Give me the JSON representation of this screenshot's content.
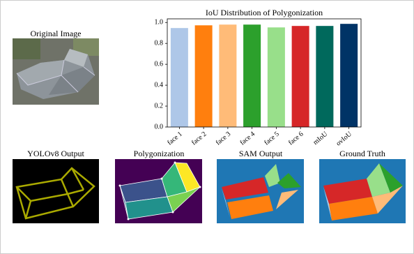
{
  "chart_data": {
    "type": "bar",
    "title": "IoU Distribution of Polygonization",
    "categories": [
      "face 1",
      "face 2",
      "face 3",
      "face 4",
      "face 5",
      "face 6",
      "mIoU",
      "ovIoU"
    ],
    "values": [
      0.947,
      0.973,
      0.98,
      0.98,
      0.953,
      0.967,
      0.967,
      0.987
    ],
    "colors": [
      "#aec7e8",
      "#ff7f0e",
      "#ffbb78",
      "#2ca02c",
      "#98df8a",
      "#d62728",
      "#00695c",
      "#003366"
    ],
    "ylim": [
      0,
      1.035
    ],
    "yticks": [
      {
        "value": 0,
        "label": "0.0"
      },
      0.2,
      0.4,
      0.6,
      0.8,
      {
        "value": 1,
        "label": "1.0"
      }
    ],
    "grid": false
  },
  "panels": {
    "original": "Original Image",
    "yolo": "YOLOv8 Output",
    "polygonization": "Polygonization",
    "sam": "SAM Output",
    "ground_truth": "Ground Truth"
  }
}
